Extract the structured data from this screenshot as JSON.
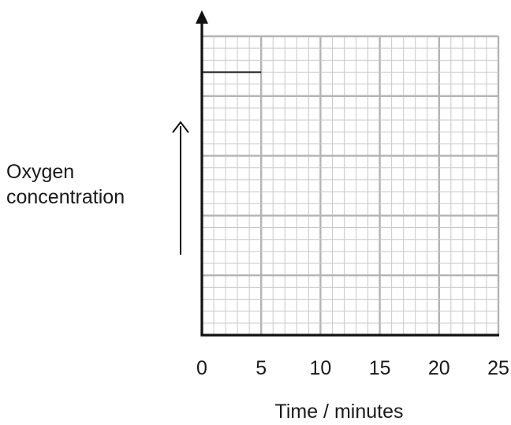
{
  "chart_data": {
    "type": "line",
    "xlabel": "Time / minutes",
    "ylabel_lines": [
      "Oxygen",
      "concentration"
    ],
    "x_ticks": [
      "0",
      "5",
      "10",
      "15",
      "20",
      "25"
    ],
    "xlim": [
      0,
      25
    ],
    "ylim": [
      0,
      1
    ],
    "y_tick_labels": "none",
    "grid": true,
    "grid_style": "graph-paper (minor 1 min, major 5 min)",
    "series": [
      {
        "x": [
          0,
          5
        ],
        "y": [
          0.88,
          0.88
        ]
      }
    ],
    "colors": {
      "minor_grid": "#c8c8c8",
      "major_grid": "#b4b4b4",
      "axis": "#111111",
      "line": "#111111",
      "text": "#1a1a1a"
    }
  }
}
